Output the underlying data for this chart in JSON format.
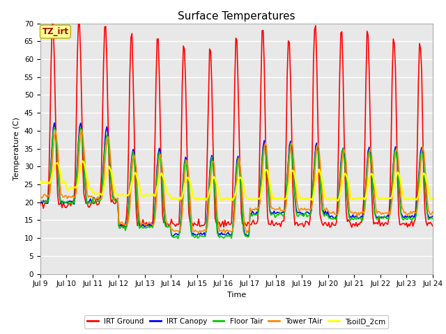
{
  "title": "Surface Temperatures",
  "xlabel": "Time",
  "ylabel": "Temperature (C)",
  "ylim": [
    0,
    70
  ],
  "yticks": [
    0,
    5,
    10,
    15,
    20,
    25,
    30,
    35,
    40,
    45,
    50,
    55,
    60,
    65,
    70
  ],
  "n_days": 15,
  "start_day": 9,
  "annotation_text": "TZ_irt",
  "annotation_bg": "#ffff99",
  "annotation_border": "#bbaa00",
  "annotation_text_color": "#aa0000",
  "series": [
    {
      "name": "IRT Ground",
      "color": "#ff0000",
      "lw": 1.2
    },
    {
      "name": "IRT Canopy",
      "color": "#0000ff",
      "lw": 1.2
    },
    {
      "name": "Floor Tair",
      "color": "#00cc00",
      "lw": 1.2
    },
    {
      "name": "Tower TAir",
      "color": "#ff8800",
      "lw": 1.2
    },
    {
      "name": "TsoilD_2cm",
      "color": "#ffff00",
      "lw": 1.8
    }
  ],
  "fig_bg": "#ffffff",
  "plot_bg": "#e8e8e8",
  "grid_color": "#ffffff",
  "title_fontsize": 11,
  "label_fontsize": 8,
  "tick_fontsize": 7.5
}
